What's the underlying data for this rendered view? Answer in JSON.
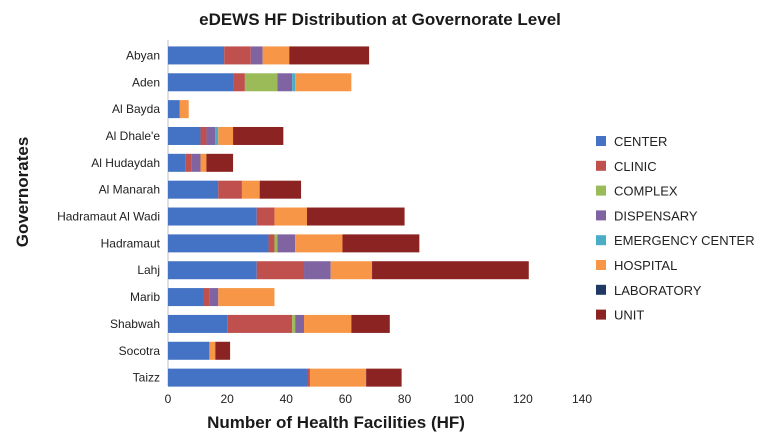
{
  "chart_data": {
    "type": "bar",
    "orientation": "horizontal",
    "stacked": true,
    "title": "eDEWS HF Distribution at Governorate Level",
    "xlabel": "Number of Health Facilities (HF)",
    "ylabel": "Governorates",
    "xlim": [
      0,
      140
    ],
    "xticks": [
      0,
      20,
      40,
      60,
      80,
      100,
      120,
      140
    ],
    "grid": false,
    "legend_position": "right",
    "categories": [
      "Abyan",
      "Aden",
      "Al Bayda",
      "Al Dhale'e",
      "Al Hudaydah",
      "Al Manarah",
      "Hadramaut Al Wadi",
      "Hadramaut",
      "Lahj",
      "Marib",
      "Shabwah",
      "Socotra",
      "Taizz"
    ],
    "series": [
      {
        "name": "CENTER",
        "color": "#4472c4",
        "values": [
          19,
          22,
          4,
          11,
          6,
          17,
          30,
          34,
          30,
          12,
          20,
          14,
          47
        ]
      },
      {
        "name": "CLINIC",
        "color": "#c0504d",
        "values": [
          9,
          4,
          0,
          2,
          2,
          8,
          6,
          2,
          16,
          2,
          22,
          0,
          1
        ]
      },
      {
        "name": "COMPLEX",
        "color": "#9bbb59",
        "values": [
          0,
          11,
          0,
          0,
          0,
          0,
          0,
          1,
          0,
          0,
          1,
          0,
          0
        ]
      },
      {
        "name": "DISPENSARY",
        "color": "#8064a2",
        "values": [
          4,
          5,
          0,
          3,
          3,
          0,
          0,
          6,
          9,
          3,
          3,
          0,
          0
        ]
      },
      {
        "name": "EMERGENCY CENTER",
        "color": "#4bacc6",
        "values": [
          0,
          1,
          0,
          1,
          0,
          0,
          0,
          0,
          0,
          0,
          0,
          0,
          0
        ]
      },
      {
        "name": "HOSPITAL",
        "color": "#f79646",
        "values": [
          9,
          19,
          3,
          5,
          2,
          6,
          11,
          16,
          14,
          19,
          16,
          2,
          19
        ]
      },
      {
        "name": "LABORATORY",
        "color": "#1f3864",
        "values": [
          0,
          0,
          0,
          0,
          0,
          0,
          0,
          0,
          0,
          0,
          0,
          0,
          0
        ]
      },
      {
        "name": "UNIT",
        "color": "#8b2323",
        "values": [
          27,
          0,
          0,
          17,
          9,
          14,
          33,
          26,
          53,
          0,
          13,
          5,
          12
        ]
      }
    ]
  }
}
